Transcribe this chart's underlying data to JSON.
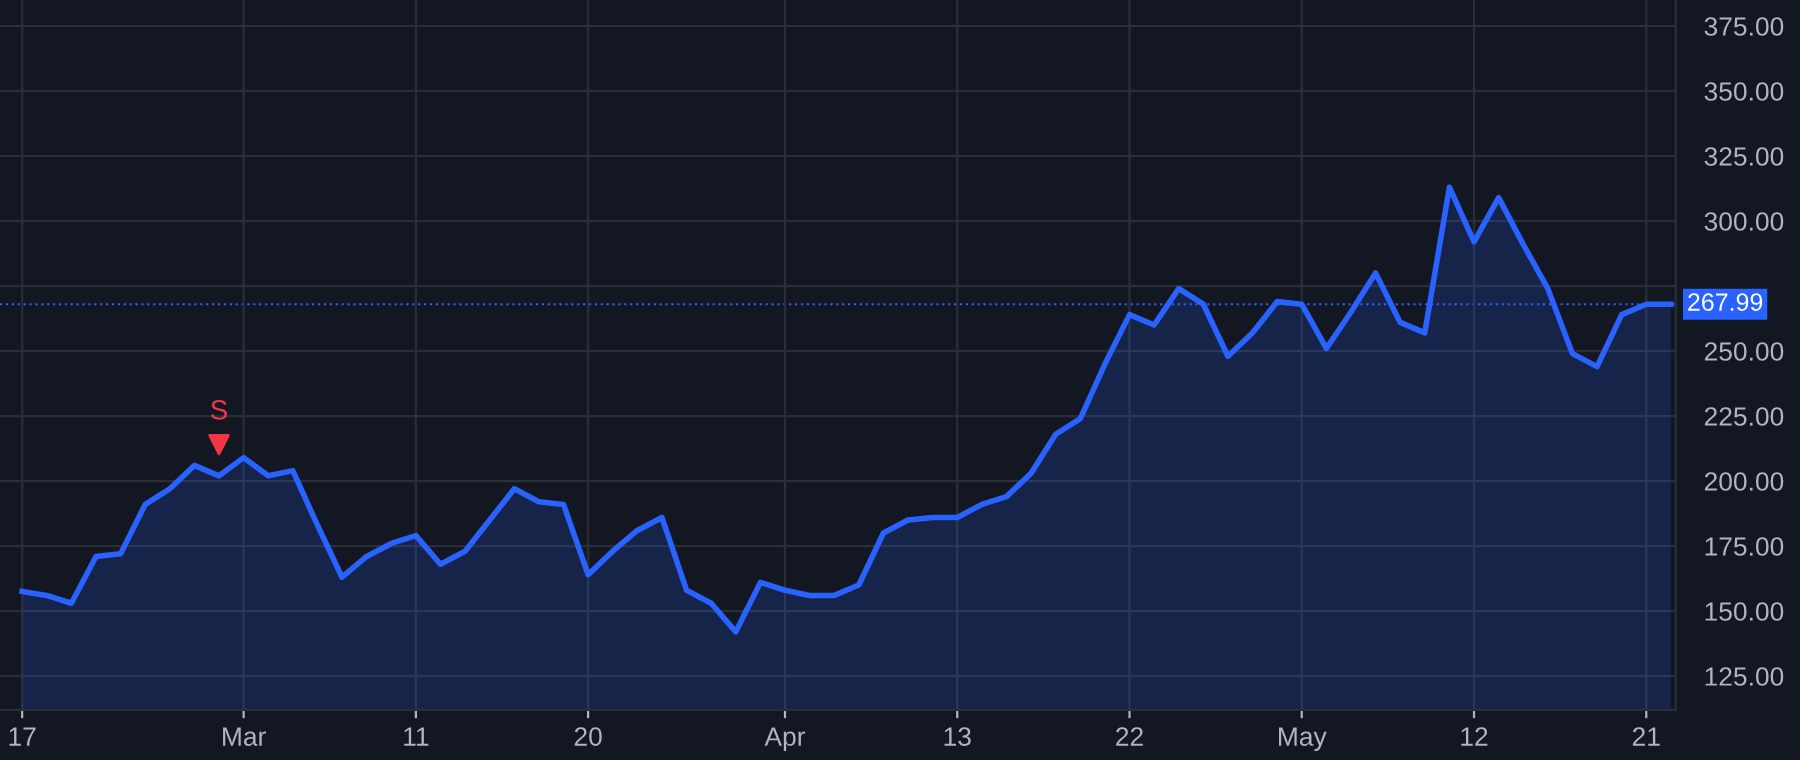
{
  "chart_data": {
    "type": "area",
    "categories": [
      "17",
      null,
      null,
      null,
      null,
      null,
      null,
      null,
      null,
      "Mar",
      null,
      null,
      null,
      null,
      null,
      null,
      "11",
      null,
      null,
      null,
      null,
      null,
      null,
      "20",
      null,
      null,
      null,
      null,
      null,
      null,
      null,
      "Apr",
      null,
      null,
      null,
      null,
      null,
      null,
      "13",
      null,
      null,
      null,
      null,
      null,
      null,
      "22",
      null,
      null,
      null,
      null,
      null,
      null,
      "May",
      null,
      null,
      null,
      null,
      null,
      null,
      "12",
      null,
      null,
      null,
      null,
      null,
      null,
      "21",
      null
    ],
    "series": [
      {
        "color": "#2962ff",
        "values": [
          157.5,
          156,
          153,
          171,
          172,
          191,
          197,
          206,
          202,
          209,
          202,
          204,
          183,
          163,
          171,
          176,
          179,
          168,
          173,
          185,
          197,
          192,
          191,
          164,
          173,
          181,
          186,
          158,
          153,
          142,
          161,
          158,
          156,
          156,
          160,
          180,
          185,
          186,
          186,
          191,
          194,
          203,
          218,
          224,
          245,
          264,
          260,
          274,
          268,
          248,
          257,
          269,
          268,
          251,
          265,
          280,
          261,
          257,
          313,
          292,
          309,
          291,
          274,
          249,
          244,
          264,
          268,
          268
        ]
      },
      {
        "type": "scatter",
        "color": "#f23645",
        "marker": "triangle",
        "values": [
          null,
          null,
          null,
          null,
          null,
          null,
          null,
          null,
          214,
          null,
          null,
          null,
          null,
          null,
          null,
          null,
          null,
          null,
          null,
          null,
          null,
          null,
          null,
          null,
          null,
          null,
          null,
          null,
          null,
          null,
          null,
          null,
          null,
          null,
          null,
          null,
          null,
          null,
          null,
          null,
          null,
          null,
          null,
          null,
          null,
          null,
          null,
          null,
          null,
          null,
          null,
          null,
          null,
          null,
          null,
          null,
          null,
          null,
          null,
          null,
          null,
          null,
          null,
          null,
          null,
          null,
          null,
          null
        ],
        "value_labels": [
          null,
          null,
          null,
          null,
          null,
          null,
          null,
          null,
          "S",
          null,
          null,
          null,
          null,
          null,
          null,
          null,
          null,
          null,
          null,
          null,
          null,
          null,
          null,
          null,
          null,
          null,
          null,
          null,
          null,
          null,
          null,
          null,
          null,
          null,
          null,
          null,
          null,
          null,
          null,
          null,
          null,
          null,
          null,
          null,
          null,
          null,
          null,
          null,
          null,
          null,
          null,
          null,
          null,
          null,
          null,
          null,
          null,
          null,
          null,
          null,
          null,
          null,
          null,
          null,
          null,
          null,
          null,
          null
        ]
      }
    ],
    "ylim": [
      112,
      385
    ],
    "yticks": [
      {
        "value": 125,
        "label": "125.00"
      },
      {
        "value": 150,
        "label": "150.00"
      },
      {
        "value": 175,
        "label": "175.00"
      },
      {
        "value": 200,
        "label": "200.00"
      },
      {
        "value": 225,
        "label": "225.00"
      },
      {
        "value": 250,
        "label": "250.00"
      },
      {
        "value": 275,
        "label": null
      },
      {
        "value": 300,
        "label": "300.00"
      },
      {
        "value": 325,
        "label": "325.00"
      },
      {
        "value": 350,
        "label": "350.00"
      },
      {
        "value": 375,
        "label": "375.00"
      }
    ],
    "ref_lines": [
      {
        "axis": "y",
        "value": 267.99,
        "label": "267.99",
        "color": "#2962ff",
        "line_style": "dotted"
      }
    ],
    "grid": true,
    "line_style": "solid"
  }
}
